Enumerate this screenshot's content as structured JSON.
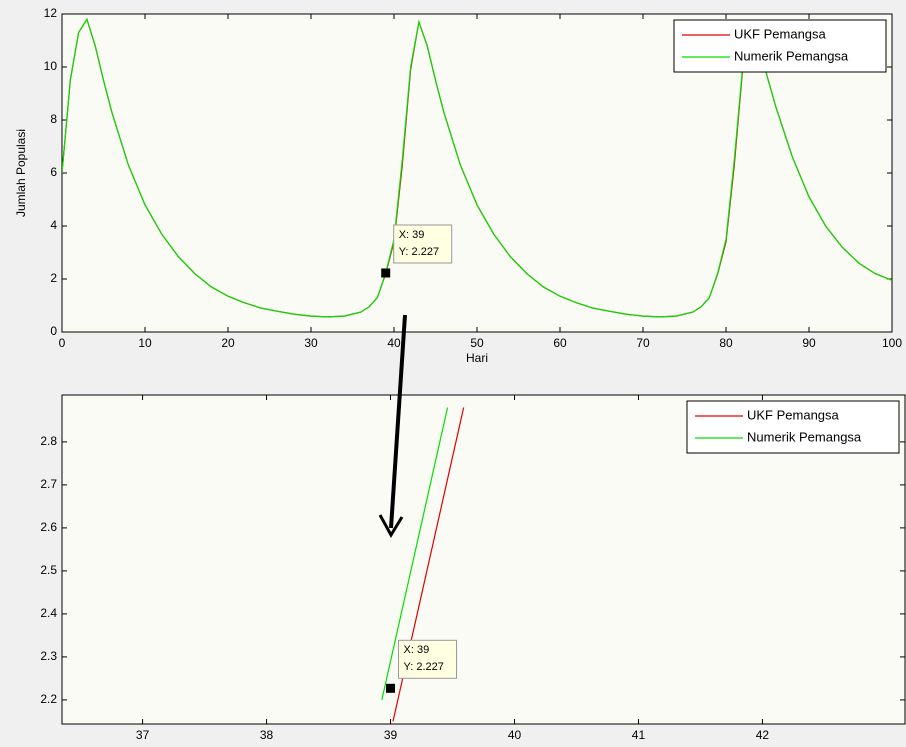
{
  "chart_data": [
    {
      "type": "line",
      "xlabel": "Hari",
      "ylabel": "Jumlah Populasi",
      "xlim": [
        0,
        100
      ],
      "ylim": [
        0,
        12
      ],
      "xticks": [
        0,
        10,
        20,
        30,
        40,
        50,
        60,
        70,
        80,
        90,
        100
      ],
      "yticks": [
        0,
        2,
        4,
        6,
        8,
        10,
        12
      ],
      "legend": "upper right",
      "series": [
        {
          "name": "UKF Pemangsa",
          "color": "#e00000",
          "x": [
            0,
            1,
            2,
            3,
            4,
            5,
            6,
            8,
            10,
            12,
            14,
            16,
            18,
            20,
            22,
            24,
            26,
            28,
            30,
            32,
            34,
            36,
            37,
            38,
            39,
            40,
            41,
            42,
            43,
            44,
            45,
            46,
            48,
            50,
            52,
            54,
            56,
            58,
            60,
            62,
            64,
            66,
            68,
            70,
            72,
            74,
            76,
            77,
            78,
            79,
            80,
            81,
            82,
            83,
            84,
            85,
            86,
            88,
            90,
            92,
            94,
            96,
            98,
            100
          ],
          "values": [
            6,
            9.5,
            11.3,
            11.8,
            10.8,
            9.5,
            8.3,
            6.3,
            4.8,
            3.7,
            2.85,
            2.2,
            1.7,
            1.35,
            1.1,
            0.9,
            0.78,
            0.67,
            0.6,
            0.57,
            0.6,
            0.75,
            0.95,
            1.3,
            2.2,
            3.4,
            6.3,
            9.9,
            11.7,
            10.8,
            9.5,
            8.3,
            6.3,
            4.8,
            3.7,
            2.85,
            2.2,
            1.7,
            1.35,
            1.1,
            0.9,
            0.78,
            0.67,
            0.6,
            0.57,
            0.6,
            0.75,
            0.95,
            1.3,
            2.2,
            3.4,
            6.3,
            9.9,
            11.7,
            10.8,
            9.6,
            8.5,
            6.6,
            5.1,
            4.0,
            3.2,
            2.6,
            2.2,
            1.95
          ]
        },
        {
          "name": "Numerik Pemangsa",
          "color": "#00e000",
          "x": [
            0,
            1,
            2,
            3,
            4,
            5,
            6,
            8,
            10,
            12,
            14,
            16,
            18,
            20,
            22,
            24,
            26,
            28,
            30,
            32,
            34,
            36,
            37,
            38,
            39,
            40,
            41,
            42,
            43,
            44,
            45,
            46,
            48,
            50,
            52,
            54,
            56,
            58,
            60,
            62,
            64,
            66,
            68,
            70,
            72,
            74,
            76,
            77,
            78,
            79,
            80,
            81,
            82,
            83,
            84,
            85,
            86,
            88,
            90,
            92,
            94,
            96,
            98,
            100
          ],
          "values": [
            6,
            9.5,
            11.3,
            11.8,
            10.8,
            9.5,
            8.3,
            6.3,
            4.8,
            3.7,
            2.85,
            2.2,
            1.7,
            1.35,
            1.1,
            0.9,
            0.78,
            0.67,
            0.6,
            0.57,
            0.6,
            0.75,
            0.95,
            1.3,
            2.227,
            3.5,
            6.5,
            10,
            11.7,
            10.8,
            9.5,
            8.3,
            6.3,
            4.8,
            3.7,
            2.85,
            2.2,
            1.7,
            1.35,
            1.1,
            0.9,
            0.78,
            0.67,
            0.6,
            0.57,
            0.6,
            0.75,
            0.95,
            1.3,
            2.227,
            3.5,
            6.5,
            10,
            11.7,
            10.8,
            9.6,
            8.5,
            6.6,
            5.1,
            4.0,
            3.2,
            2.6,
            2.2,
            1.95
          ]
        }
      ],
      "datatip": {
        "x": 39,
        "y": 2.227,
        "labels": [
          "X: 39",
          "Y: 2.227"
        ]
      }
    },
    {
      "type": "line",
      "xlim": [
        36.35,
        43.15
      ],
      "ylim": [
        2.144,
        2.909
      ],
      "xticks": [
        37,
        38,
        39,
        40,
        41,
        42
      ],
      "yticks": [
        2.2,
        2.3,
        2.4,
        2.5,
        2.6,
        2.7,
        2.8
      ],
      "legend": "upper right",
      "series": [
        {
          "name": "UKF Pemangsa",
          "color": "#e00000",
          "x": [
            39.02,
            39.59
          ],
          "values": [
            2.15,
            2.88
          ]
        },
        {
          "name": "Numerik Pemangsa",
          "color": "#00e000",
          "x": [
            38.93,
            39.46
          ],
          "values": [
            2.2,
            2.88
          ]
        }
      ],
      "datatip": {
        "x": 39,
        "y": 2.227,
        "labels": [
          "X: 39",
          "Y: 2.227"
        ]
      }
    }
  ]
}
